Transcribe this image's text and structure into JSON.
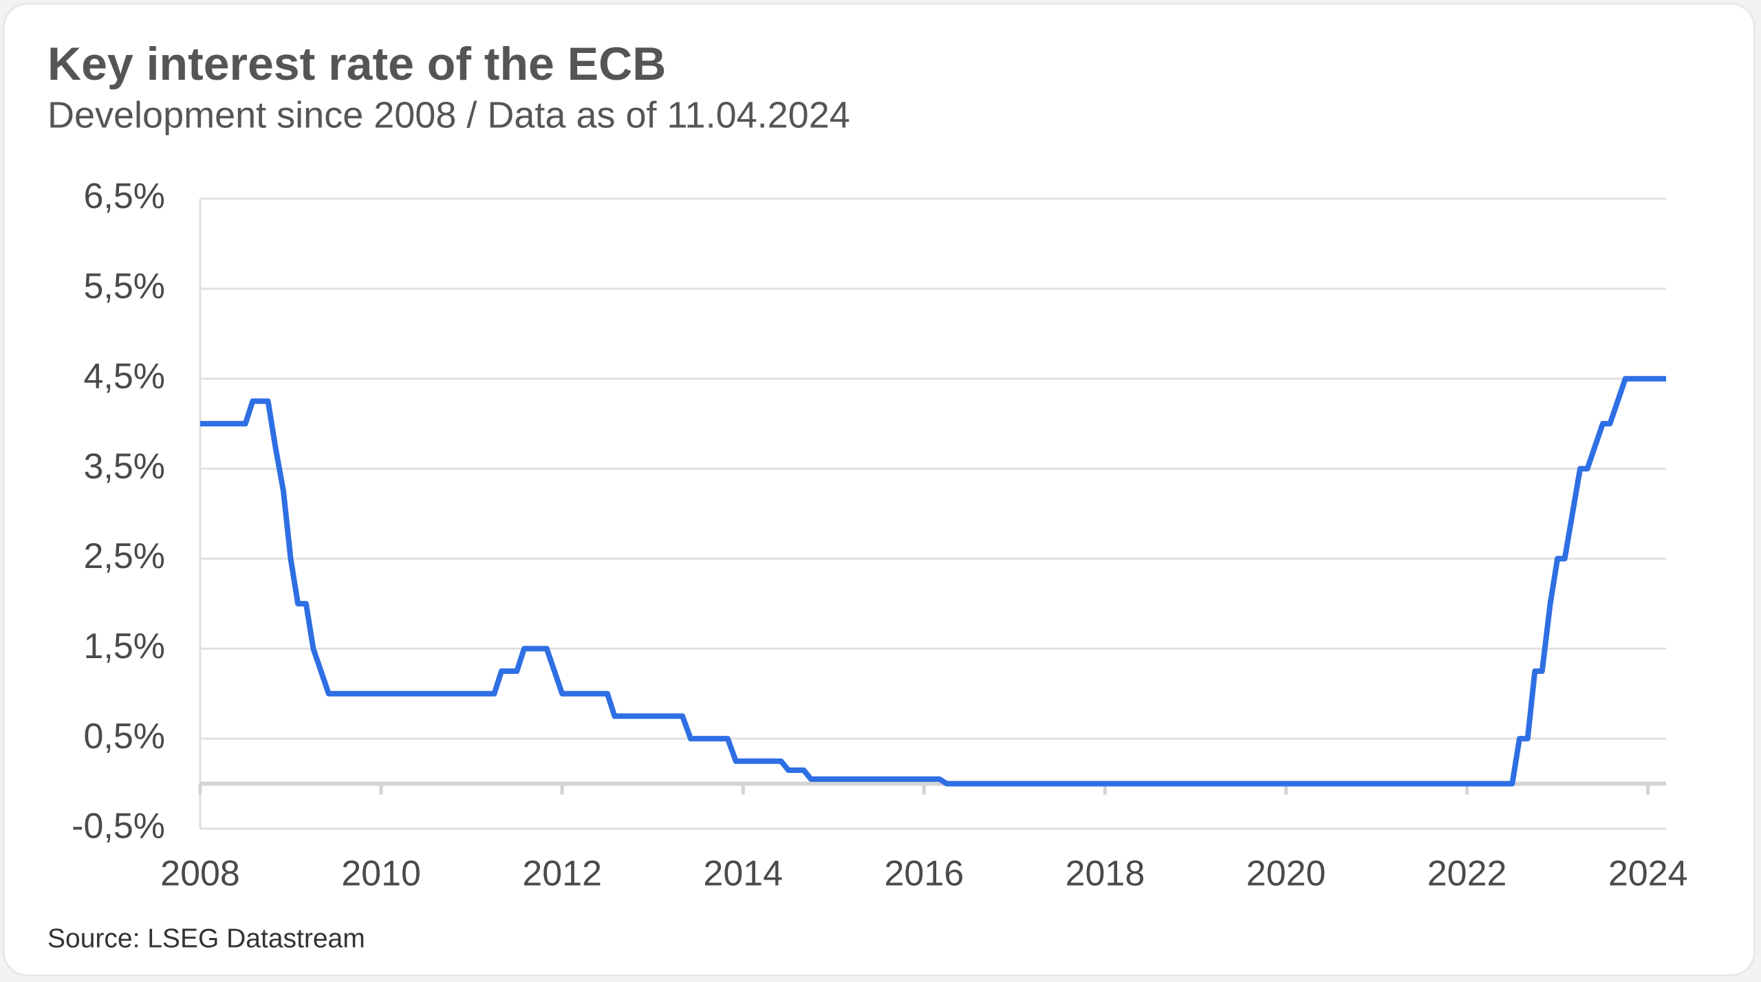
{
  "chart_data": {
    "type": "line",
    "title": "Key interest rate of the ECB",
    "subtitle": "Development since 2008 / Data as of 11.04.2024",
    "source": "Source: LSEG Datastream",
    "x": [
      2008.0,
      2008.5,
      2008.58,
      2008.75,
      2008.83,
      2008.92,
      2009.0,
      2009.08,
      2009.17,
      2009.25,
      2009.42,
      2011.25,
      2011.33,
      2011.5,
      2011.58,
      2011.83,
      2012.0,
      2012.5,
      2012.58,
      2013.33,
      2013.42,
      2013.83,
      2013.92,
      2014.42,
      2014.5,
      2014.67,
      2014.75,
      2016.17,
      2016.25,
      2022.5,
      2022.58,
      2022.67,
      2022.75,
      2022.83,
      2022.92,
      2023.0,
      2023.08,
      2023.25,
      2023.33,
      2023.5,
      2023.58,
      2023.75,
      2024.2
    ],
    "series": [
      {
        "name": "Key interest rate",
        "color": "#2f6fe4",
        "values": [
          4.0,
          4.0,
          4.25,
          4.25,
          3.75,
          3.25,
          2.5,
          2.0,
          2.0,
          1.5,
          1.0,
          1.0,
          1.25,
          1.25,
          1.5,
          1.5,
          1.0,
          1.0,
          0.75,
          0.75,
          0.5,
          0.5,
          0.25,
          0.25,
          0.15,
          0.15,
          0.05,
          0.05,
          0.0,
          0.0,
          0.5,
          0.5,
          1.25,
          1.25,
          2.0,
          2.5,
          2.5,
          3.5,
          3.5,
          4.0,
          4.0,
          4.5,
          4.5
        ]
      }
    ],
    "xlim": [
      2008,
      2024.2
    ],
    "xticks": [
      2008,
      2010,
      2012,
      2014,
      2016,
      2018,
      2020,
      2022,
      2024
    ],
    "ylim": [
      -0.5,
      6.5
    ],
    "yticks": [
      {
        "value": -0.5,
        "label": "-0,5%"
      },
      {
        "value": 0.5,
        "label": "0,5%"
      },
      {
        "value": 1.5,
        "label": "1,5%"
      },
      {
        "value": 2.5,
        "label": "2,5%"
      },
      {
        "value": 3.5,
        "label": "3,5%"
      },
      {
        "value": 4.5,
        "label": "4,5%"
      },
      {
        "value": 5.5,
        "label": "5,5%"
      },
      {
        "value": 6.5,
        "label": "6,5%"
      }
    ],
    "grid": true
  }
}
